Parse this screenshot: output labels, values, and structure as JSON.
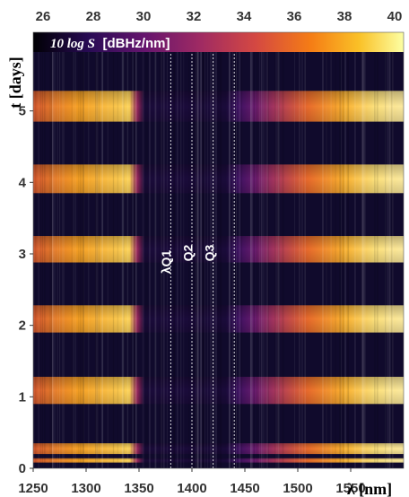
{
  "chart_data": {
    "type": "heatmap",
    "x_bottom": {
      "label": "λ [nm]",
      "ticks": [
        1250,
        1300,
        1350,
        1400,
        1450,
        1500,
        1550
      ],
      "range": [
        1250,
        1600
      ]
    },
    "x_top": {
      "ticks": [
        26,
        28,
        30,
        32,
        34,
        36,
        38,
        40
      ]
    },
    "y": {
      "label": "t [days]",
      "ticks": [
        0,
        1,
        2,
        3,
        4,
        5
      ],
      "range": [
        0,
        6.1
      ]
    },
    "colorbar": {
      "label": "10 log S",
      "unit": "[dBHz/nm]",
      "colormap": "inferno"
    },
    "markers": [
      {
        "label": "λQ1",
        "x": 1380
      },
      {
        "label": "Q2",
        "x": 1400
      },
      {
        "label": "Q3",
        "x": 1420
      },
      {
        "label": "",
        "x": 1440
      }
    ],
    "on_bands": [
      {
        "t_start": 0.08,
        "t_end": 0.14
      },
      {
        "t_start": 0.2,
        "t_end": 0.35
      },
      {
        "t_start": 0.9,
        "t_end": 1.28
      },
      {
        "t_start": 1.9,
        "t_end": 2.28
      },
      {
        "t_start": 2.88,
        "t_end": 3.25
      },
      {
        "t_start": 3.85,
        "t_end": 4.25
      },
      {
        "t_start": 4.85,
        "t_end": 5.28
      },
      {
        "t_start": 5.9,
        "t_end": 6.1
      }
    ],
    "colors": {
      "background": "#100a2c",
      "low": "#280b54",
      "mid": "#bc3754",
      "high": "#fcffa4"
    }
  }
}
